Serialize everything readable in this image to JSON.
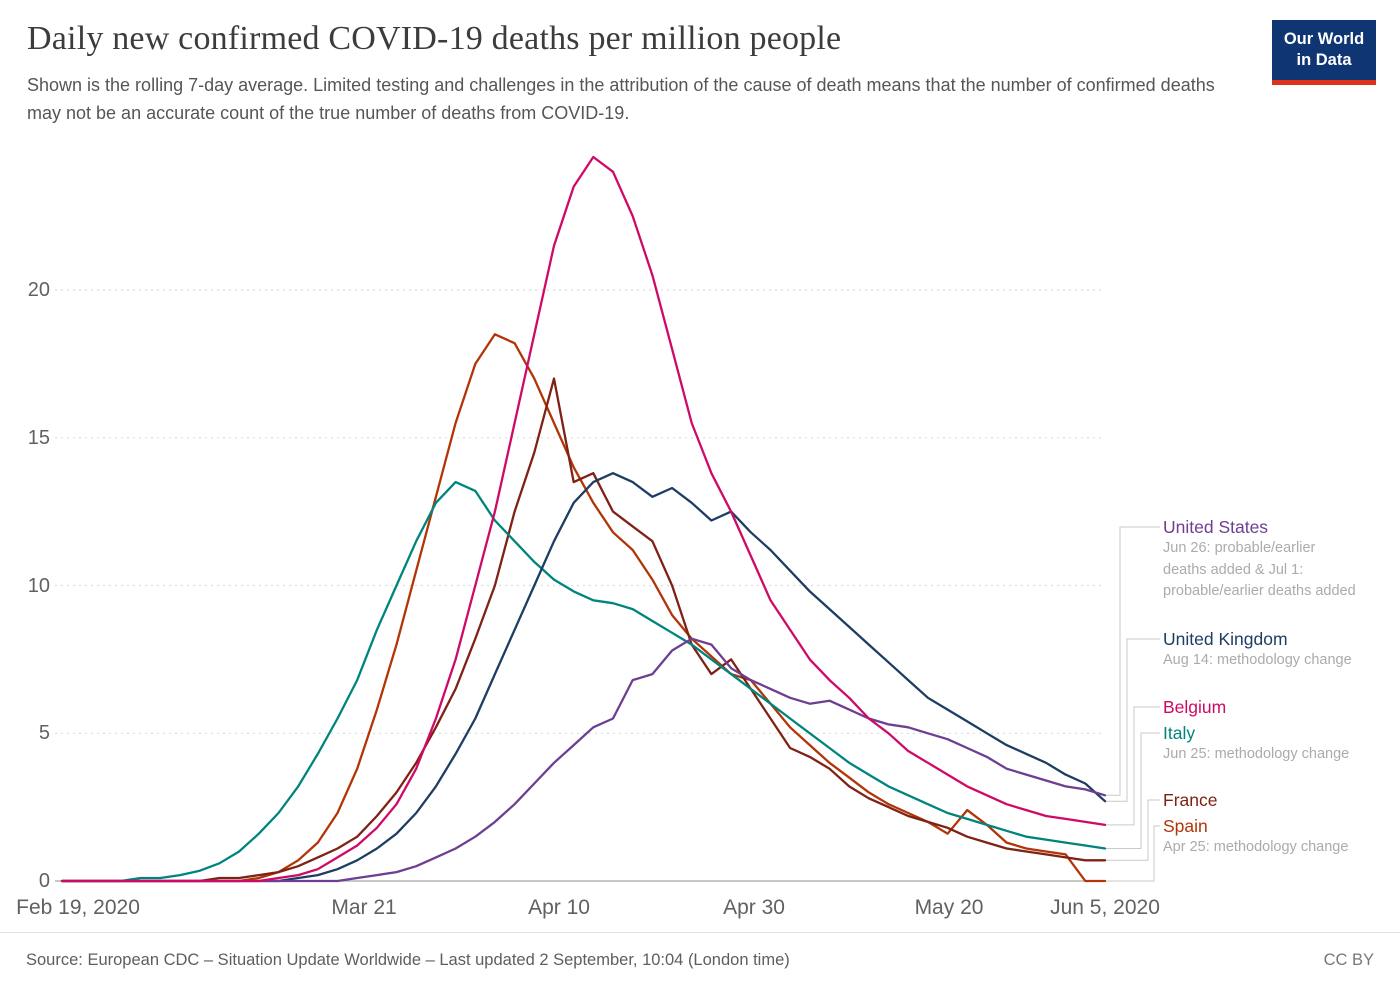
{
  "header": {
    "title": "Daily new confirmed COVID-19 deaths per million people",
    "subtitle": "Shown is the rolling 7-day average. Limited testing and challenges in the attribution of the cause of death means that the number of confirmed deaths may not be an accurate count of the true number of deaths from COVID-19.",
    "logo": {
      "line1": "Our World",
      "line2": "in Data",
      "bg": "#0f3573",
      "accent": "#e0301e"
    }
  },
  "legend": [
    {
      "label": "United States",
      "note": "Jun 26: probable/earlier deaths added & Jul 1: probable/earlier deaths added"
    },
    {
      "label": "United Kingdom",
      "note": "Aug 14: methodology change"
    },
    {
      "label": "Belgium",
      "note": ""
    },
    {
      "label": "Italy",
      "note": "Jun 25: methodology change"
    },
    {
      "label": "France",
      "note": ""
    },
    {
      "label": "Spain",
      "note": "Apr 25: methodology change"
    }
  ],
  "footer": {
    "source": "Source: European CDC – Situation Update Worldwide – Last updated 2 September, 10:04 (London time)",
    "license": "CC BY"
  },
  "chart_data": {
    "type": "line",
    "title": "Daily new confirmed COVID-19 deaths per million people",
    "xlabel": "",
    "ylabel": "",
    "ylim": [
      0,
      25
    ],
    "grid": "horizontal-dashed",
    "legend_position": "right",
    "y_gridlines": [
      5,
      10,
      15,
      20
    ],
    "y_tick_labels": [
      "0",
      "5",
      "10",
      "15",
      "20"
    ],
    "x_tick_labels": [
      "Feb 19, 2020",
      "Mar 21",
      "Apr 10",
      "Apr 30",
      "May 20",
      "Jun 5, 2020"
    ],
    "x_tick_days": [
      0,
      31,
      51,
      71,
      91,
      106
    ],
    "x_domain_days": [
      0,
      106
    ],
    "x_days": [
      0,
      2,
      4,
      6,
      8,
      10,
      12,
      14,
      16,
      18,
      20,
      22,
      24,
      26,
      28,
      30,
      32,
      34,
      36,
      38,
      40,
      42,
      44,
      46,
      48,
      50,
      52,
      54,
      56,
      58,
      60,
      62,
      64,
      66,
      68,
      70,
      72,
      74,
      76,
      78,
      80,
      82,
      84,
      86,
      88,
      90,
      92,
      94,
      96,
      98,
      100,
      102,
      104,
      106
    ],
    "series": [
      {
        "name": "United States",
        "color": "#6d3e91",
        "values": [
          0,
          0,
          0,
          0,
          0,
          0,
          0,
          0,
          0,
          0,
          0,
          0,
          0,
          0,
          0,
          0.1,
          0.2,
          0.3,
          0.5,
          0.8,
          1.1,
          1.5,
          2.0,
          2.6,
          3.3,
          4.0,
          4.6,
          5.2,
          5.5,
          6.8,
          7.0,
          7.8,
          8.2,
          8.0,
          7.2,
          6.8,
          6.5,
          6.2,
          6.0,
          6.1,
          5.8,
          5.5,
          5.3,
          5.2,
          5.0,
          4.8,
          4.5,
          4.2,
          3.8,
          3.6,
          3.4,
          3.2,
          3.1,
          2.9
        ]
      },
      {
        "name": "United Kingdom",
        "color": "#1d3d63",
        "values": [
          0,
          0,
          0,
          0,
          0,
          0,
          0,
          0,
          0,
          0,
          0,
          0,
          0.1,
          0.2,
          0.4,
          0.7,
          1.1,
          1.6,
          2.3,
          3.2,
          4.3,
          5.5,
          7.0,
          8.5,
          10.0,
          11.5,
          12.8,
          13.5,
          13.8,
          13.5,
          13.0,
          13.3,
          12.8,
          12.2,
          12.5,
          11.8,
          11.2,
          10.5,
          9.8,
          9.2,
          8.6,
          8.0,
          7.4,
          6.8,
          6.2,
          5.8,
          5.4,
          5.0,
          4.6,
          4.3,
          4.0,
          3.6,
          3.3,
          2.7
        ]
      },
      {
        "name": "Belgium",
        "color": "#cf0a66",
        "values": [
          0,
          0,
          0,
          0,
          0,
          0,
          0,
          0,
          0,
          0,
          0,
          0.1,
          0.2,
          0.4,
          0.8,
          1.2,
          1.8,
          2.6,
          3.8,
          5.5,
          7.5,
          10.0,
          12.5,
          15.5,
          18.5,
          21.5,
          23.5,
          24.5,
          24.0,
          22.5,
          20.5,
          18.0,
          15.5,
          13.8,
          12.5,
          11.0,
          9.5,
          8.5,
          7.5,
          6.8,
          6.2,
          5.5,
          5.0,
          4.4,
          4.0,
          3.6,
          3.2,
          2.9,
          2.6,
          2.4,
          2.2,
          2.1,
          2.0,
          1.9
        ]
      },
      {
        "name": "Italy",
        "color": "#00847e",
        "values": [
          0,
          0,
          0,
          0,
          0.1,
          0.1,
          0.2,
          0.35,
          0.6,
          1.0,
          1.6,
          2.3,
          3.2,
          4.3,
          5.5,
          6.8,
          8.5,
          10.0,
          11.5,
          12.8,
          13.5,
          13.2,
          12.2,
          11.5,
          10.8,
          10.2,
          9.8,
          9.5,
          9.4,
          9.2,
          8.8,
          8.4,
          8.0,
          7.5,
          7.0,
          6.5,
          6.0,
          5.5,
          5.0,
          4.5,
          4.0,
          3.6,
          3.2,
          2.9,
          2.6,
          2.3,
          2.1,
          1.9,
          1.7,
          1.5,
          1.4,
          1.3,
          1.2,
          1.1
        ]
      },
      {
        "name": "France",
        "color": "#7f2216",
        "values": [
          0,
          0,
          0,
          0,
          0,
          0,
          0,
          0,
          0.1,
          0.1,
          0.2,
          0.3,
          0.5,
          0.8,
          1.1,
          1.5,
          2.2,
          3.0,
          4.0,
          5.2,
          6.5,
          8.2,
          10.0,
          12.5,
          14.5,
          17.0,
          13.5,
          13.8,
          12.5,
          12.0,
          11.5,
          10.0,
          8.0,
          7.0,
          7.5,
          6.5,
          5.5,
          4.5,
          4.2,
          3.8,
          3.2,
          2.8,
          2.5,
          2.2,
          2.0,
          1.8,
          1.5,
          1.3,
          1.1,
          1.0,
          0.9,
          0.8,
          0.7,
          0.7
        ]
      },
      {
        "name": "Spain",
        "color": "#b13507",
        "values": [
          0,
          0,
          0,
          0,
          0,
          0,
          0,
          0,
          0,
          0,
          0.1,
          0.3,
          0.7,
          1.3,
          2.3,
          3.8,
          5.8,
          8.0,
          10.5,
          13.0,
          15.5,
          17.5,
          18.5,
          18.2,
          17.0,
          15.5,
          14.0,
          12.8,
          11.8,
          11.2,
          10.2,
          9.0,
          8.2,
          7.6,
          7.0,
          6.8,
          6.0,
          5.2,
          4.6,
          4.0,
          3.5,
          3.0,
          2.6,
          2.3,
          2.0,
          1.6,
          2.4,
          1.9,
          1.3,
          1.1,
          1.0,
          0.9,
          0.0,
          0.0
        ]
      }
    ]
  }
}
